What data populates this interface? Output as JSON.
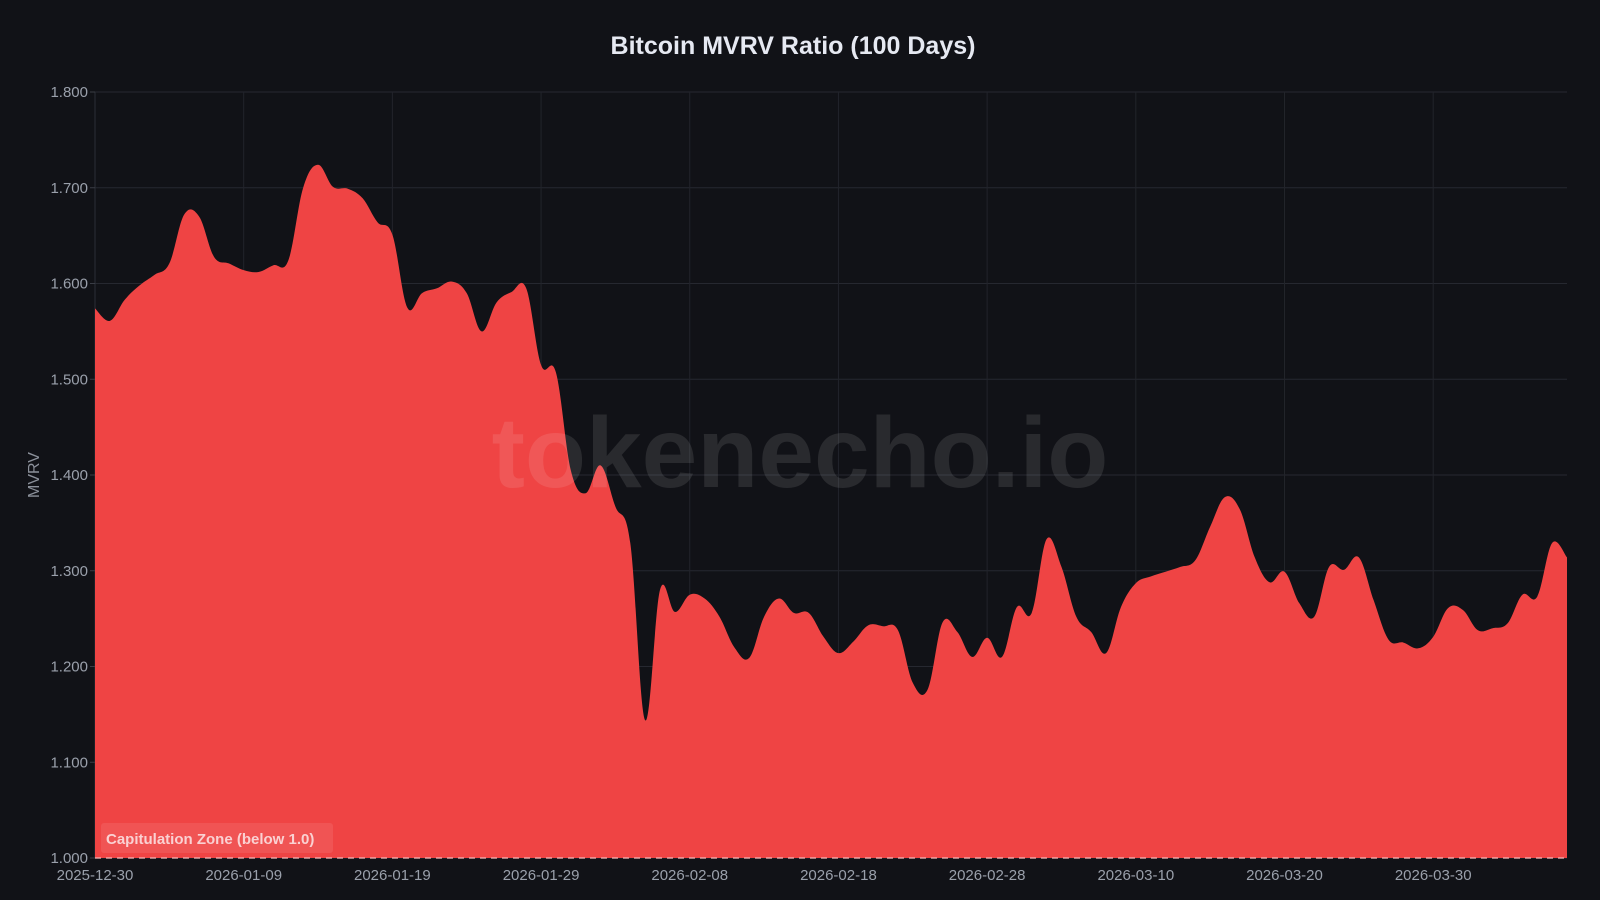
{
  "chart_data": {
    "type": "area",
    "title": "Bitcoin MVRV Ratio (100 Days)",
    "xlabel": "",
    "ylabel": "MVRV",
    "ylim": [
      1.0,
      1.8
    ],
    "grid": true,
    "legend": "none",
    "y_ticks": [
      "1.000",
      "1.100",
      "1.200",
      "1.300",
      "1.400",
      "1.500",
      "1.600",
      "1.700",
      "1.800"
    ],
    "x_ticks": [
      "2025-12-30",
      "2026-01-09",
      "2026-01-19",
      "2026-01-29",
      "2026-02-08",
      "2026-02-18",
      "2026-02-28",
      "2026-03-10",
      "2026-03-20",
      "2026-03-30"
    ],
    "x_start": "2025-12-30",
    "x_end": "2026-04-08",
    "values": [
      1.574,
      1.561,
      1.583,
      1.598,
      1.609,
      1.621,
      1.672,
      1.67,
      1.628,
      1.621,
      1.614,
      1.612,
      1.619,
      1.624,
      1.7,
      1.724,
      1.701,
      1.699,
      1.689,
      1.664,
      1.651,
      1.575,
      1.59,
      1.595,
      1.602,
      1.59,
      1.55,
      1.58,
      1.591,
      1.595,
      1.515,
      1.507,
      1.405,
      1.381,
      1.41,
      1.367,
      1.329,
      1.144,
      1.28,
      1.257,
      1.275,
      1.271,
      1.252,
      1.22,
      1.209,
      1.252,
      1.271,
      1.256,
      1.256,
      1.231,
      1.214,
      1.226,
      1.243,
      1.242,
      1.238,
      1.183,
      1.176,
      1.246,
      1.236,
      1.21,
      1.23,
      1.21,
      1.262,
      1.256,
      1.333,
      1.304,
      1.252,
      1.236,
      1.214,
      1.262,
      1.287,
      1.294,
      1.299,
      1.304,
      1.311,
      1.346,
      1.377,
      1.364,
      1.314,
      1.288,
      1.299,
      1.266,
      1.252,
      1.304,
      1.301,
      1.314,
      1.269,
      1.228,
      1.225,
      1.219,
      1.231,
      1.261,
      1.259,
      1.238,
      1.24,
      1.245,
      1.275,
      1.273,
      1.329,
      1.314
    ],
    "fill_color": "#ef4444",
    "annotations": [
      {
        "type": "hline",
        "y": 1.0,
        "style": "dashed",
        "label": "Capitulation Zone (below 1.0)"
      }
    ],
    "watermark": "tokenecho.io"
  }
}
